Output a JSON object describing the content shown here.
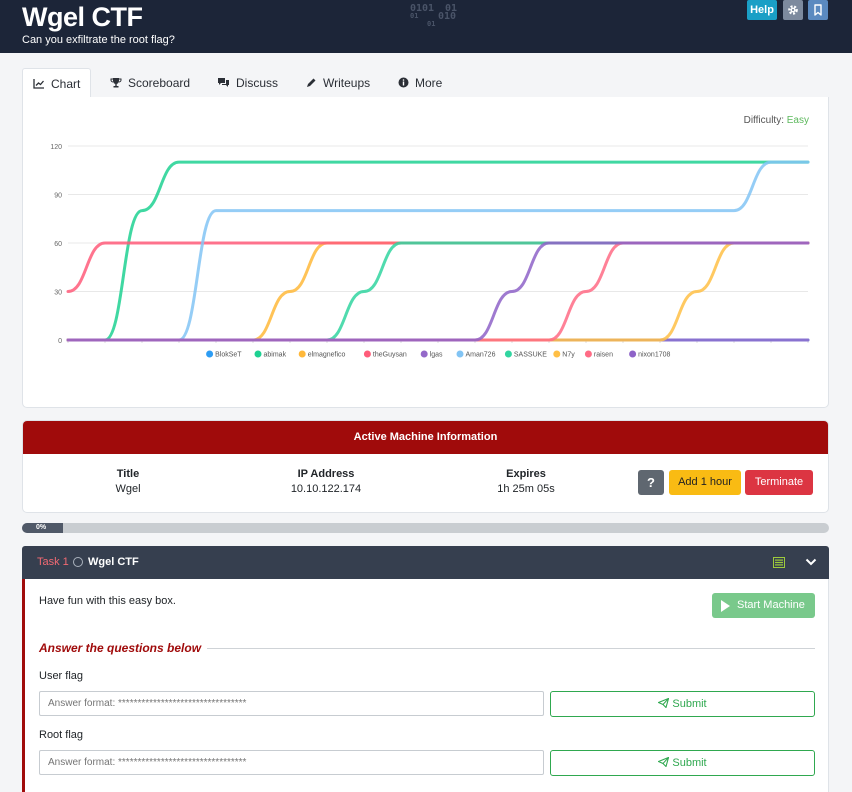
{
  "header": {
    "title": "Wgel CTF",
    "subtitle": "Can you exfiltrate the root flag?",
    "binary": [
      "0101",
      "01",
      "01",
      "010",
      "01"
    ],
    "help_label": "Help"
  },
  "tabs": [
    {
      "label": "Chart",
      "icon": "chart-line-icon",
      "active": true
    },
    {
      "label": "Scoreboard",
      "icon": "trophy-icon"
    },
    {
      "label": "Discuss",
      "icon": "comments-icon"
    },
    {
      "label": "Writeups",
      "icon": "pen-icon"
    },
    {
      "label": "More",
      "icon": "info-circle-icon"
    }
  ],
  "difficulty": {
    "label": "Difficulty:",
    "level": "Easy",
    "color": "#5cb85c"
  },
  "chart_data": {
    "type": "line",
    "title": "",
    "xlabel": "",
    "ylabel": "",
    "ylim": [
      0,
      120
    ],
    "yticks": [
      0,
      30,
      60,
      90,
      120
    ],
    "grid": true,
    "legend_position": "bottom",
    "x": [
      0,
      0.05,
      0.1,
      0.15,
      0.2,
      0.25,
      0.3,
      0.35,
      0.4,
      0.45,
      0.5,
      0.55,
      0.6,
      0.65,
      0.7,
      0.75,
      0.8,
      0.85,
      0.9,
      0.95,
      1.0
    ],
    "series": [
      {
        "name": "BlokSeT",
        "color": "#2d9cf3",
        "values": [
          0,
          0,
          0,
          0,
          0,
          0,
          0,
          0,
          0,
          0,
          0,
          0,
          0,
          0,
          0,
          0,
          0,
          0,
          0,
          0,
          0
        ]
      },
      {
        "name": "abimak",
        "color": "#1ed192",
        "values": [
          0,
          0,
          80,
          110,
          110,
          110,
          110,
          110,
          110,
          110,
          110,
          110,
          110,
          110,
          110,
          110,
          110,
          110,
          110,
          110,
          110
        ]
      },
      {
        "name": "elmagnefico",
        "color": "#ffb83a",
        "values": [
          0,
          0,
          0,
          0,
          0,
          0,
          30,
          60,
          60,
          60,
          60,
          60,
          60,
          60,
          60,
          60,
          60,
          60,
          60,
          60,
          60
        ]
      },
      {
        "name": "theGuysan",
        "color": "#ff5c7a",
        "values": [
          30,
          60,
          60,
          60,
          60,
          60,
          60,
          60,
          60,
          60,
          60,
          60,
          60,
          60,
          60,
          60,
          60,
          60,
          60,
          60,
          60
        ]
      },
      {
        "name": "lgas",
        "color": "#9469c9",
        "values": [
          0,
          0,
          0,
          0,
          0,
          0,
          0,
          0,
          0,
          0,
          0,
          0,
          0,
          0,
          0,
          0,
          0,
          0,
          0,
          0,
          0
        ]
      },
      {
        "name": "Aman726",
        "color": "#82c4f4",
        "values": [
          0,
          0,
          0,
          0,
          80,
          80,
          80,
          80,
          80,
          80,
          80,
          80,
          80,
          80,
          80,
          80,
          80,
          80,
          80,
          110,
          110
        ]
      },
      {
        "name": "SASSUKE",
        "color": "#31d5a0",
        "values": [
          0,
          0,
          0,
          0,
          0,
          0,
          0,
          0,
          30,
          60,
          60,
          60,
          60,
          60,
          60,
          60,
          60,
          60,
          60,
          60,
          60
        ]
      },
      {
        "name": "N7y",
        "color": "#ffbf45",
        "values": [
          0,
          0,
          0,
          0,
          0,
          0,
          0,
          0,
          0,
          0,
          0,
          0,
          0,
          0,
          0,
          0,
          0,
          30,
          60,
          60,
          60
        ]
      },
      {
        "name": "raisen",
        "color": "#ff6b85",
        "values": [
          0,
          0,
          0,
          0,
          0,
          0,
          0,
          0,
          0,
          0,
          0,
          0,
          0,
          0,
          30,
          60,
          60,
          60,
          60,
          60,
          60
        ]
      },
      {
        "name": "nixon1708",
        "color": "#8e63c8",
        "values": [
          0,
          0,
          0,
          0,
          0,
          0,
          0,
          0,
          0,
          0,
          0,
          0,
          30,
          60,
          60,
          60,
          60,
          60,
          60,
          60,
          60
        ]
      }
    ]
  },
  "active_machine": {
    "heading": "Active Machine Information",
    "title_label": "Title",
    "title_value": "Wgel",
    "ip_label": "IP Address",
    "ip_value": "10.10.122.174",
    "expires_label": "Expires",
    "expires_value": "1h 25m 05s",
    "help_label": "?",
    "add_hour_label": "Add 1 hour",
    "terminate_label": "Terminate"
  },
  "progress": {
    "label": "0%",
    "value": 0
  },
  "task": {
    "number_label": "Task 1",
    "title": "Wgel CTF",
    "description": "Have fun with this easy box.",
    "start_label": "Start Machine",
    "answer_heading": "Answer the questions below",
    "questions": [
      {
        "label": "User flag",
        "placeholder": "Answer format: *********************************",
        "submit_label": "Submit"
      },
      {
        "label": "Root flag",
        "placeholder": "Answer format: *********************************",
        "submit_label": "Submit"
      }
    ]
  }
}
